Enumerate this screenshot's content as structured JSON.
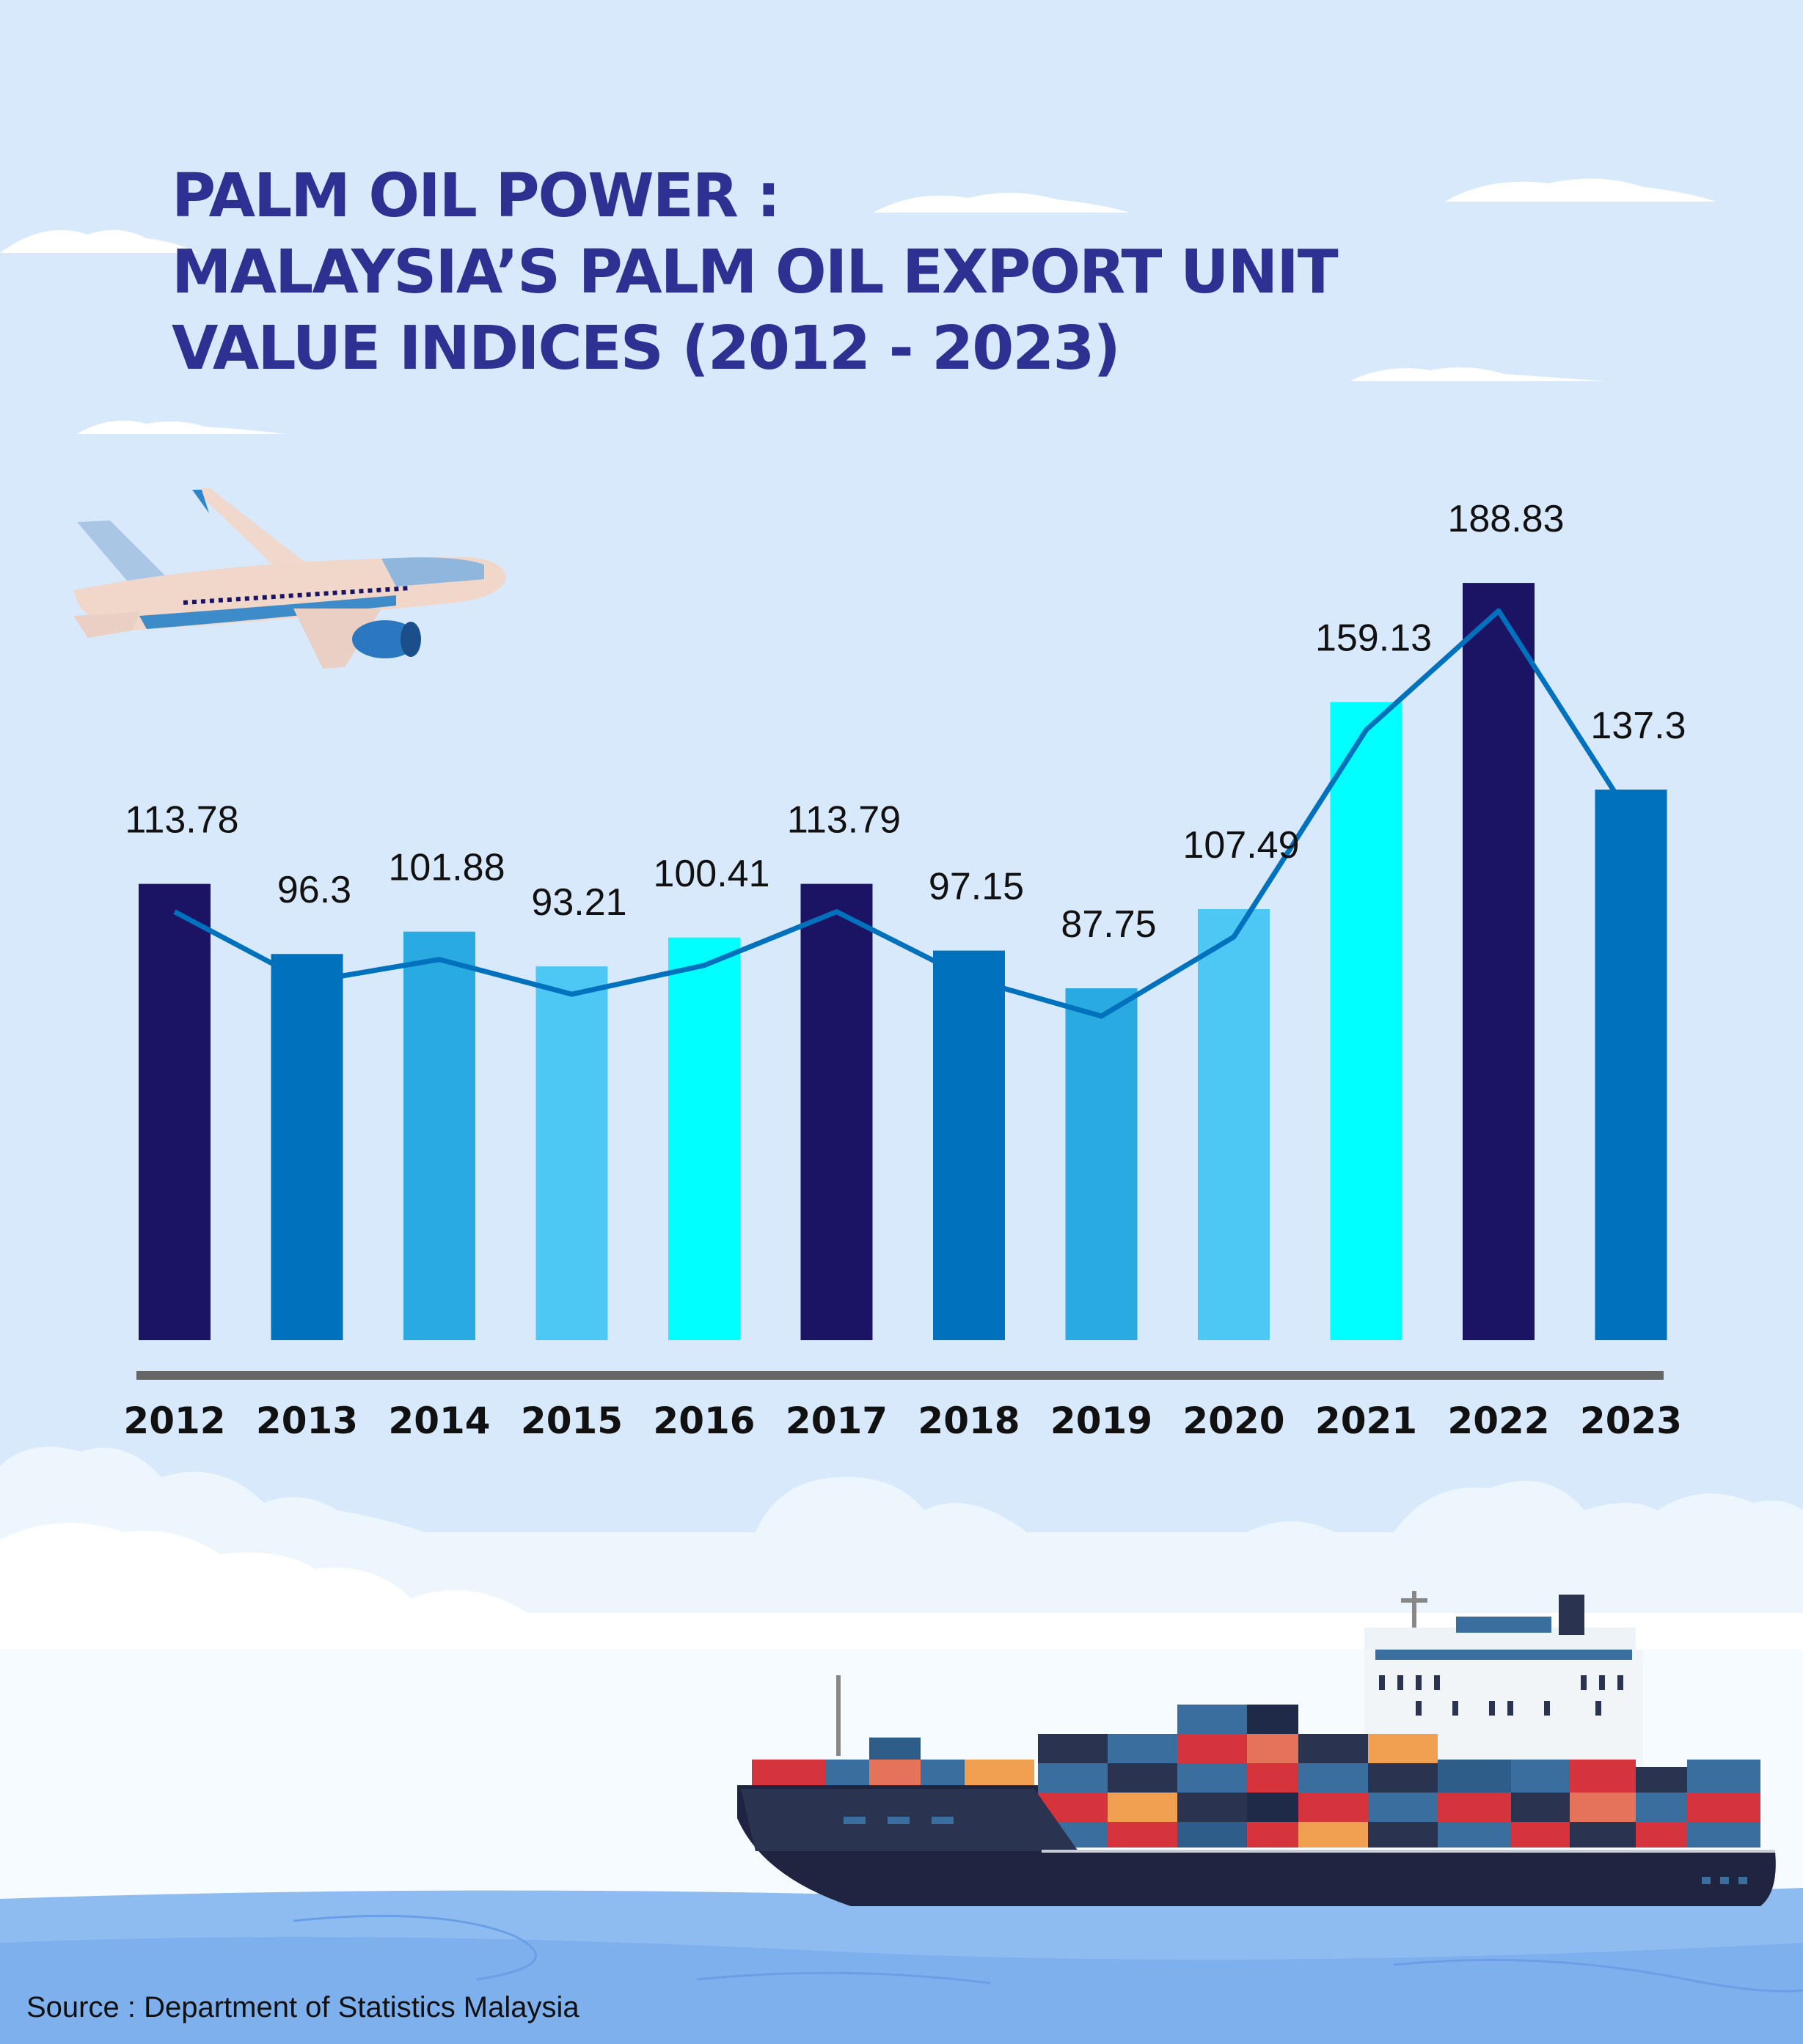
{
  "title": {
    "line1": "PALM OIL POWER :",
    "line2": "MALAYSIA’S PALM OIL EXPORT UNIT",
    "line3": "VALUE INDICES (2012 - 2023)"
  },
  "source": "Source : Department of Statistics Malaysia",
  "chart_data": {
    "type": "bar",
    "categories": [
      "2012",
      "2013",
      "2014",
      "2015",
      "2016",
      "2017",
      "2018",
      "2019",
      "2020",
      "2021",
      "2022",
      "2023"
    ],
    "values": [
      113.78,
      96.3,
      101.88,
      93.21,
      100.41,
      113.79,
      97.15,
      87.75,
      107.49,
      159.13,
      188.83,
      137.3
    ],
    "value_labels": [
      "113.78",
      "96.3",
      "101.88",
      "93.21",
      "100.41",
      "113.79",
      "97.15",
      "87.75",
      "107.49",
      "159.13",
      "188.83",
      "137.3"
    ],
    "overlay_line": true,
    "bar_colors": [
      "#1b1464",
      "#0071bc",
      "#29abe2",
      "#4dc8f5",
      "#00ffff",
      "#1b1464",
      "#0071bc",
      "#29abe2",
      "#4dc8f5",
      "#00ffff",
      "#1b1464",
      "#0071bc"
    ],
    "line_color": "#0071bc",
    "axis_color": "#666666",
    "grid": false,
    "legend": "none"
  },
  "illustrations": {
    "airplane": "airplane-illustration",
    "ship": "container-ship-illustration",
    "clouds": "cloud-illustration",
    "sea": "sea-illustration"
  }
}
